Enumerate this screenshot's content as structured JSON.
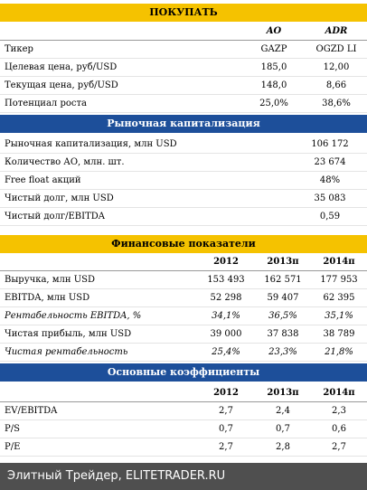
{
  "sections": [
    {
      "title": "ПОКУПАТЬ",
      "bar_color": "#f5c200",
      "title_color": "#000000",
      "columns": [
        "AO",
        "ADR"
      ],
      "rows": [
        [
          "Тикер",
          "GAZP",
          "OGZD LI"
        ],
        [
          "Целевая цена, руб/USD",
          "185,0",
          "12,00"
        ],
        [
          "Текущая цена, руб/USD",
          "148,0",
          "8,66"
        ],
        [
          "Потенциал роста",
          "25,0%",
          "38,6%"
        ]
      ]
    },
    {
      "title": "Рыночная капитализация",
      "bar_color": "#1d4f9a",
      "title_color": "#ffffff",
      "rows": [
        [
          "Рыночная капитализация, млн USD",
          "106 172"
        ],
        [
          "Количество АО, млн. шт.",
          "23 674"
        ],
        [
          "Free float акций",
          "48%"
        ],
        [
          "Чистый долг, млн USD",
          "35 083"
        ],
        [
          "Чистый долг/EBITDA",
          "0,59"
        ]
      ]
    },
    {
      "title": "Финансовые показатели",
      "bar_color": "#f5c200",
      "title_color": "#000000",
      "columns": [
        "2012",
        "2013п",
        "2014п"
      ],
      "italic_rows": [
        2,
        4
      ],
      "rows": [
        [
          "Выручка, млн USD",
          "153 493",
          "162 571",
          "177 953"
        ],
        [
          "EBITDA, млн USD",
          "52 298",
          "59 407",
          "62 395"
        ],
        [
          "Рентабельность EBITDA, %",
          "34,1%",
          "36,5%",
          "35,1%"
        ],
        [
          "Чистая прибыль, млн USD",
          "39 000",
          "37 838",
          "38 789"
        ],
        [
          "Чистая рентабельность",
          "25,4%",
          "23,3%",
          "21,8%"
        ]
      ]
    },
    {
      "title": "Основные коэффициенты",
      "bar_color": "#1d4f9a",
      "title_color": "#ffffff",
      "columns": [
        "2012",
        "2013п",
        "2014п"
      ],
      "rows": [
        [
          "EV/EBITDA",
          "2,7",
          "2,4",
          "2,3"
        ],
        [
          "P/S",
          "0,7",
          "0,7",
          "0,6"
        ],
        [
          "P/E",
          "2,7",
          "2,8",
          "2,7"
        ]
      ]
    }
  ],
  "watermark": "Элитный Трейдер, ELITETRADER.RU"
}
